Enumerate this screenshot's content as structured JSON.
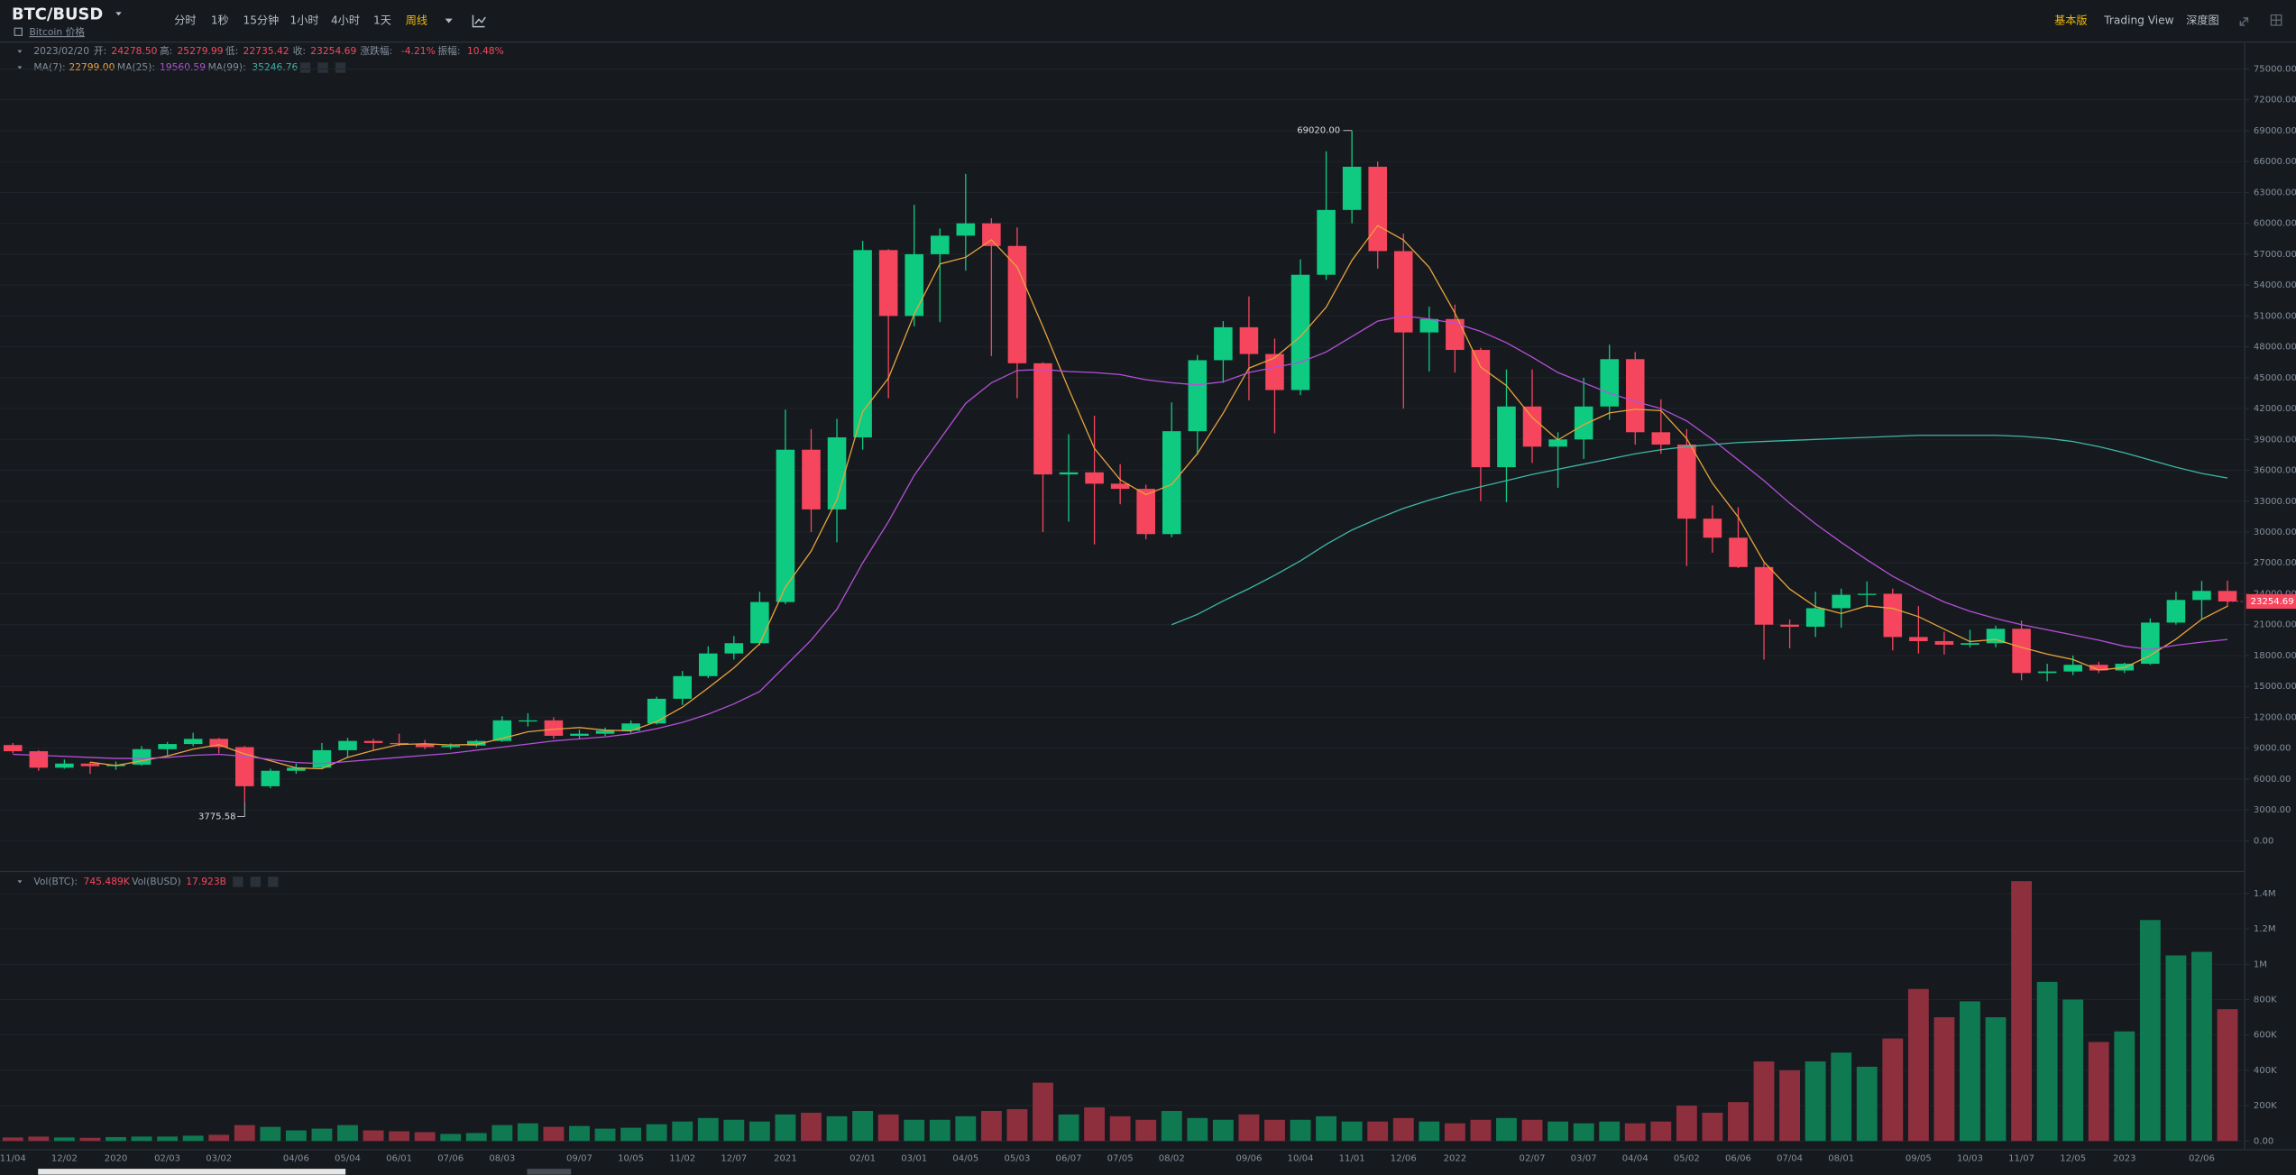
{
  "toolbar": {
    "symbol": "BTC/BUSD",
    "intervals": [
      "分时",
      "1秒",
      "15分钟",
      "1小时",
      "4小时",
      "1天",
      "周线"
    ],
    "views": [
      "基本版",
      "Trading View",
      "深度图"
    ],
    "link": "Bitcoin 价格"
  },
  "chart_data": {
    "type": "candlestick",
    "categories": [
      "11/04",
      null,
      "12/02",
      null,
      "2020",
      null,
      "02/03",
      null,
      "03/02",
      null,
      null,
      "04/06",
      null,
      "05/04",
      null,
      "06/01",
      null,
      "07/06",
      null,
      "08/03",
      null,
      null,
      "09/07",
      null,
      "10/05",
      null,
      "11/02",
      null,
      "12/07",
      null,
      "2021",
      null,
      null,
      "02/01",
      null,
      "03/01",
      null,
      "04/05",
      null,
      "05/03",
      null,
      "06/07",
      null,
      "07/05",
      null,
      "08/02",
      null,
      null,
      "09/06",
      null,
      "10/04",
      null,
      "11/01",
      null,
      "12/06",
      null,
      "2022",
      null,
      null,
      "02/07",
      null,
      "03/07",
      null,
      "04/04",
      null,
      "05/02",
      null,
      "06/06",
      null,
      "07/04",
      null,
      "08/01",
      null,
      null,
      "09/05",
      null,
      "10/03",
      null,
      "11/07",
      null,
      "12/05",
      null,
      "2023",
      null,
      null,
      "02/06",
      null
    ],
    "open": [
      9300,
      8700,
      7100,
      7500,
      7250,
      7400,
      8900,
      9400,
      9900,
      9100,
      5300,
      6800,
      7100,
      8800,
      9700,
      9500,
      9400,
      9100,
      9250,
      9700,
      11700,
      11700,
      10200,
      10400,
      10700,
      11400,
      13800,
      16000,
      18200,
      19200,
      23200,
      38000,
      32200,
      39200,
      57400,
      51000,
      57000,
      58800,
      60000,
      57800,
      46400,
      35600,
      35800,
      34700,
      34200,
      29800,
      39800,
      46700,
      49900,
      47300,
      43800,
      55000,
      61300,
      65500,
      57300,
      49400,
      50700,
      47700,
      36300,
      42200,
      38300,
      39000,
      42200,
      46800,
      39700,
      38500,
      31300,
      29450,
      26600,
      21000,
      20800,
      22600,
      23900,
      24000,
      19800,
      19400,
      19050,
      19200,
      20600,
      16300,
      16450,
      17100,
      16550,
      17200,
      21200,
      23400,
      24278.5
    ],
    "high": [
      9500,
      8800,
      7900,
      7650,
      7700,
      9200,
      9600,
      10500,
      10000,
      9200,
      7000,
      7500,
      9500,
      10000,
      9900,
      10400,
      9800,
      9450,
      9800,
      12100,
      12400,
      12000,
      10800,
      11000,
      11700,
      14000,
      16500,
      18900,
      19900,
      24200,
      41900,
      40000,
      41000,
      58300,
      57500,
      61800,
      59500,
      64800,
      60500,
      59600,
      46500,
      39500,
      41300,
      36600,
      34600,
      42600,
      47200,
      50500,
      52900,
      48800,
      56500,
      67000,
      69020,
      66000,
      59000,
      51900,
      52100,
      47900,
      45800,
      45800,
      39700,
      45000,
      48200,
      47500,
      42900,
      40000,
      32600,
      32400,
      27000,
      21500,
      24200,
      24500,
      25200,
      24500,
      22800,
      20300,
      20500,
      20900,
      21400,
      17200,
      18000,
      17400,
      17300,
      21600,
      24200,
      25250,
      25279.99
    ],
    "low": [
      8500,
      6800,
      7000,
      6500,
      6900,
      7300,
      8300,
      9200,
      8500,
      3775.58,
      5100,
      6500,
      7000,
      8100,
      8800,
      9200,
      8900,
      8900,
      9100,
      9600,
      11100,
      9900,
      9900,
      10200,
      10500,
      11300,
      13200,
      15800,
      17600,
      19000,
      23000,
      30000,
      29000,
      38000,
      43000,
      50000,
      50400,
      55400,
      47100,
      43000,
      30000,
      31000,
      28800,
      32700,
      29300,
      29500,
      37500,
      44500,
      42800,
      39600,
      43300,
      54500,
      60000,
      55600,
      42000,
      45600,
      45500,
      33000,
      32900,
      36700,
      34300,
      37100,
      40900,
      38500,
      37600,
      26700,
      28000,
      26500,
      17600,
      18700,
      19800,
      20700,
      22700,
      18500,
      18200,
      18100,
      18800,
      18800,
      15600,
      15500,
      16100,
      16300,
      16300,
      17100,
      21000,
      21500,
      22735.42
    ],
    "close": [
      8700,
      7100,
      7500,
      7250,
      7400,
      8900,
      9400,
      9900,
      9100,
      5300,
      6800,
      7100,
      8800,
      9700,
      9500,
      9400,
      9100,
      9250,
      9700,
      11700,
      11700,
      10200,
      10400,
      10700,
      11400,
      13800,
      16000,
      18200,
      19200,
      23200,
      38000,
      32200,
      39200,
      57400,
      51000,
      57000,
      58800,
      60000,
      57800,
      46400,
      35600,
      35800,
      34700,
      34200,
      29800,
      39800,
      46700,
      49900,
      47300,
      43800,
      55000,
      61300,
      65500,
      57300,
      49400,
      50700,
      47700,
      36300,
      42200,
      38300,
      39000,
      42200,
      46800,
      39700,
      38500,
      31300,
      29450,
      26600,
      21000,
      20800,
      22600,
      23900,
      24000,
      19800,
      19400,
      19050,
      19200,
      20600,
      16300,
      16450,
      17100,
      16550,
      17200,
      21200,
      23400,
      24278.5,
      23254.69
    ],
    "up_color": "#0ecb81",
    "down_color": "#f6465d",
    "ylim": [
      -2850,
      77400
    ],
    "yticks": [
      {
        "value": 0,
        "label": "0.00"
      },
      {
        "value": 3000,
        "label": "3000.00"
      },
      {
        "value": 6000,
        "label": "6000.00"
      },
      {
        "value": 9000,
        "label": "9000.00"
      },
      {
        "value": 12000,
        "label": "12000.00"
      },
      {
        "value": 15000,
        "label": "15000.00"
      },
      {
        "value": 18000,
        "label": "18000.00"
      },
      {
        "value": 21000,
        "label": "21000.00"
      },
      {
        "value": 24000,
        "label": "24000.00"
      },
      {
        "value": 27000,
        "label": "27000.00"
      },
      {
        "value": 30000,
        "label": "30000.00"
      },
      {
        "value": 33000,
        "label": "33000.00"
      },
      {
        "value": 36000,
        "label": "36000.00"
      },
      {
        "value": 39000,
        "label": "39000.00"
      },
      {
        "value": 42000,
        "label": "42000.00"
      },
      {
        "value": 45000,
        "label": "45000.00"
      },
      {
        "value": 48000,
        "label": "48000.00"
      },
      {
        "value": 51000,
        "label": "51000.00"
      },
      {
        "value": 54000,
        "label": "54000.00"
      },
      {
        "value": 57000,
        "label": "57000.00"
      },
      {
        "value": 60000,
        "label": "60000.00"
      },
      {
        "value": 63000,
        "label": "63000.00"
      },
      {
        "value": 66000,
        "label": "66000.00"
      },
      {
        "value": 69000,
        "label": "69000.00"
      },
      {
        "value": 72000,
        "label": "72000.00"
      },
      {
        "value": 75000,
        "label": "75000.00"
      }
    ],
    "grid": true,
    "legend": {
      "date": "2023/02/20",
      "labels": [
        "开:",
        "高:",
        "低:",
        "收:",
        "涨跌幅:",
        "振幅:"
      ],
      "values": [
        "24278.50",
        "25279.99",
        "22735.42",
        "23254.69",
        "-4.21%",
        "10.48%"
      ]
    },
    "extreme_labels": {
      "high": "69020.00",
      "low": "3775.58"
    },
    "ma": [
      {
        "name": "MA(7):",
        "color": "#e8a33d",
        "value_label": "22799.00",
        "values": [
          null,
          null,
          null,
          7640,
          7310,
          7760,
          8240,
          8900,
          9330,
          8430,
          7780,
          7080,
          7000,
          8100,
          8780,
          9350,
          9430,
          9310,
          9360,
          9940,
          10590,
          10830,
          11000,
          10750,
          10680,
          11580,
          12980,
          14850,
          16800,
          19150,
          24650,
          28150,
          33150,
          41700,
          44950,
          51150,
          56050,
          56700,
          58400,
          55750,
          49950,
          43900,
          38130,
          35080,
          33630,
          34630,
          37630,
          41550,
          45930,
          46930,
          49000,
          51850,
          56400,
          59780,
          58380,
          55730,
          51280,
          46030,
          44230,
          41130,
          38950,
          40430,
          41580,
          41930,
          41800,
          39080,
          34740,
          31460,
          27090,
          24460,
          22750,
          22080,
          22830,
          22580,
          21780,
          20560,
          19360,
          19560,
          18790,
          18140,
          17610,
          16600,
          16830,
          18010,
          19590,
          21520,
          22799
        ]
      },
      {
        "name": "MA(25):",
        "color": "#b450d8",
        "value_label": "19560.59",
        "values": [
          8400,
          8300,
          8200,
          8100,
          8000,
          8000,
          8100,
          8300,
          8400,
          8200,
          7900,
          7600,
          7500,
          7700,
          7900,
          8100,
          8300,
          8500,
          8800,
          9100,
          9400,
          9700,
          9900,
          10100,
          10400,
          10900,
          11500,
          12300,
          13300,
          14500,
          17000,
          19500,
          22500,
          27000,
          31000,
          35500,
          39000,
          42500,
          44500,
          45700,
          45800,
          45600,
          45500,
          45300,
          44800,
          44500,
          44300,
          44600,
          45500,
          46000,
          46500,
          47500,
          49000,
          50500,
          51000,
          50700,
          50300,
          49500,
          48400,
          47000,
          45500,
          44500,
          43500,
          42700,
          42000,
          40800,
          39000,
          37000,
          35000,
          32800,
          30800,
          29000,
          27300,
          25700,
          24400,
          23200,
          22300,
          21600,
          21000,
          20500,
          20000,
          19500,
          18900,
          18600,
          19000,
          19300,
          19560.59
        ]
      },
      {
        "name": "MA(99):",
        "color": "#3fb6a8",
        "value_label": "35246.76",
        "values": [
          null,
          null,
          null,
          null,
          null,
          null,
          null,
          null,
          null,
          null,
          null,
          null,
          null,
          null,
          null,
          null,
          null,
          null,
          null,
          null,
          null,
          null,
          null,
          null,
          null,
          null,
          null,
          null,
          null,
          null,
          null,
          null,
          null,
          null,
          null,
          null,
          null,
          null,
          null,
          null,
          null,
          null,
          null,
          null,
          null,
          21000,
          22000,
          23300,
          24500,
          25800,
          27200,
          28800,
          30200,
          31300,
          32300,
          33100,
          33800,
          34400,
          35000,
          35600,
          36100,
          36600,
          37100,
          37600,
          38000,
          38300,
          38500,
          38700,
          38800,
          38900,
          39000,
          39100,
          39200,
          39300,
          39400,
          39400,
          39400,
          39400,
          39300,
          39100,
          38800,
          38300,
          37700,
          37000,
          36300,
          35700,
          35246.76
        ]
      }
    ],
    "volume": {
      "name": "Vol(BTC):",
      "value_label": "745.489K",
      "quote_name": "Vol(BUSD)",
      "quote_label": "17.923B",
      "up_color": "#0f7a52",
      "down_color": "#8e2f3e",
      "ylim": [
        -33000,
        1516000
      ],
      "yticks": [
        {
          "value": 0,
          "label": "0.00"
        },
        {
          "value": 200000,
          "label": "200K"
        },
        {
          "value": 400000,
          "label": "400K"
        },
        {
          "value": 600000,
          "label": "600K"
        },
        {
          "value": 800000,
          "label": "800K"
        },
        {
          "value": 1000000,
          "label": "1M"
        },
        {
          "value": 1200000,
          "label": "1.2M"
        },
        {
          "value": 1400000,
          "label": "1.4M"
        }
      ],
      "values": [
        20000,
        25000,
        20000,
        18000,
        22000,
        25000,
        25000,
        30000,
        35000,
        90000,
        80000,
        60000,
        70000,
        90000,
        60000,
        55000,
        50000,
        40000,
        45000,
        90000,
        100000,
        80000,
        85000,
        70000,
        75000,
        95000,
        110000,
        130000,
        120000,
        110000,
        150000,
        160000,
        140000,
        170000,
        150000,
        120000,
        120000,
        140000,
        170000,
        180000,
        330000,
        150000,
        190000,
        140000,
        120000,
        170000,
        130000,
        120000,
        150000,
        120000,
        120000,
        140000,
        110000,
        110000,
        130000,
        110000,
        100000,
        120000,
        130000,
        120000,
        110000,
        100000,
        110000,
        100000,
        110000,
        200000,
        160000,
        220000,
        450000,
        400000,
        450000,
        500000,
        420000,
        580000,
        860000,
        700000,
        790000,
        700000,
        1470000,
        900000,
        800000,
        560000,
        620000,
        1250000,
        1050000,
        1070000,
        745489
      ]
    }
  }
}
